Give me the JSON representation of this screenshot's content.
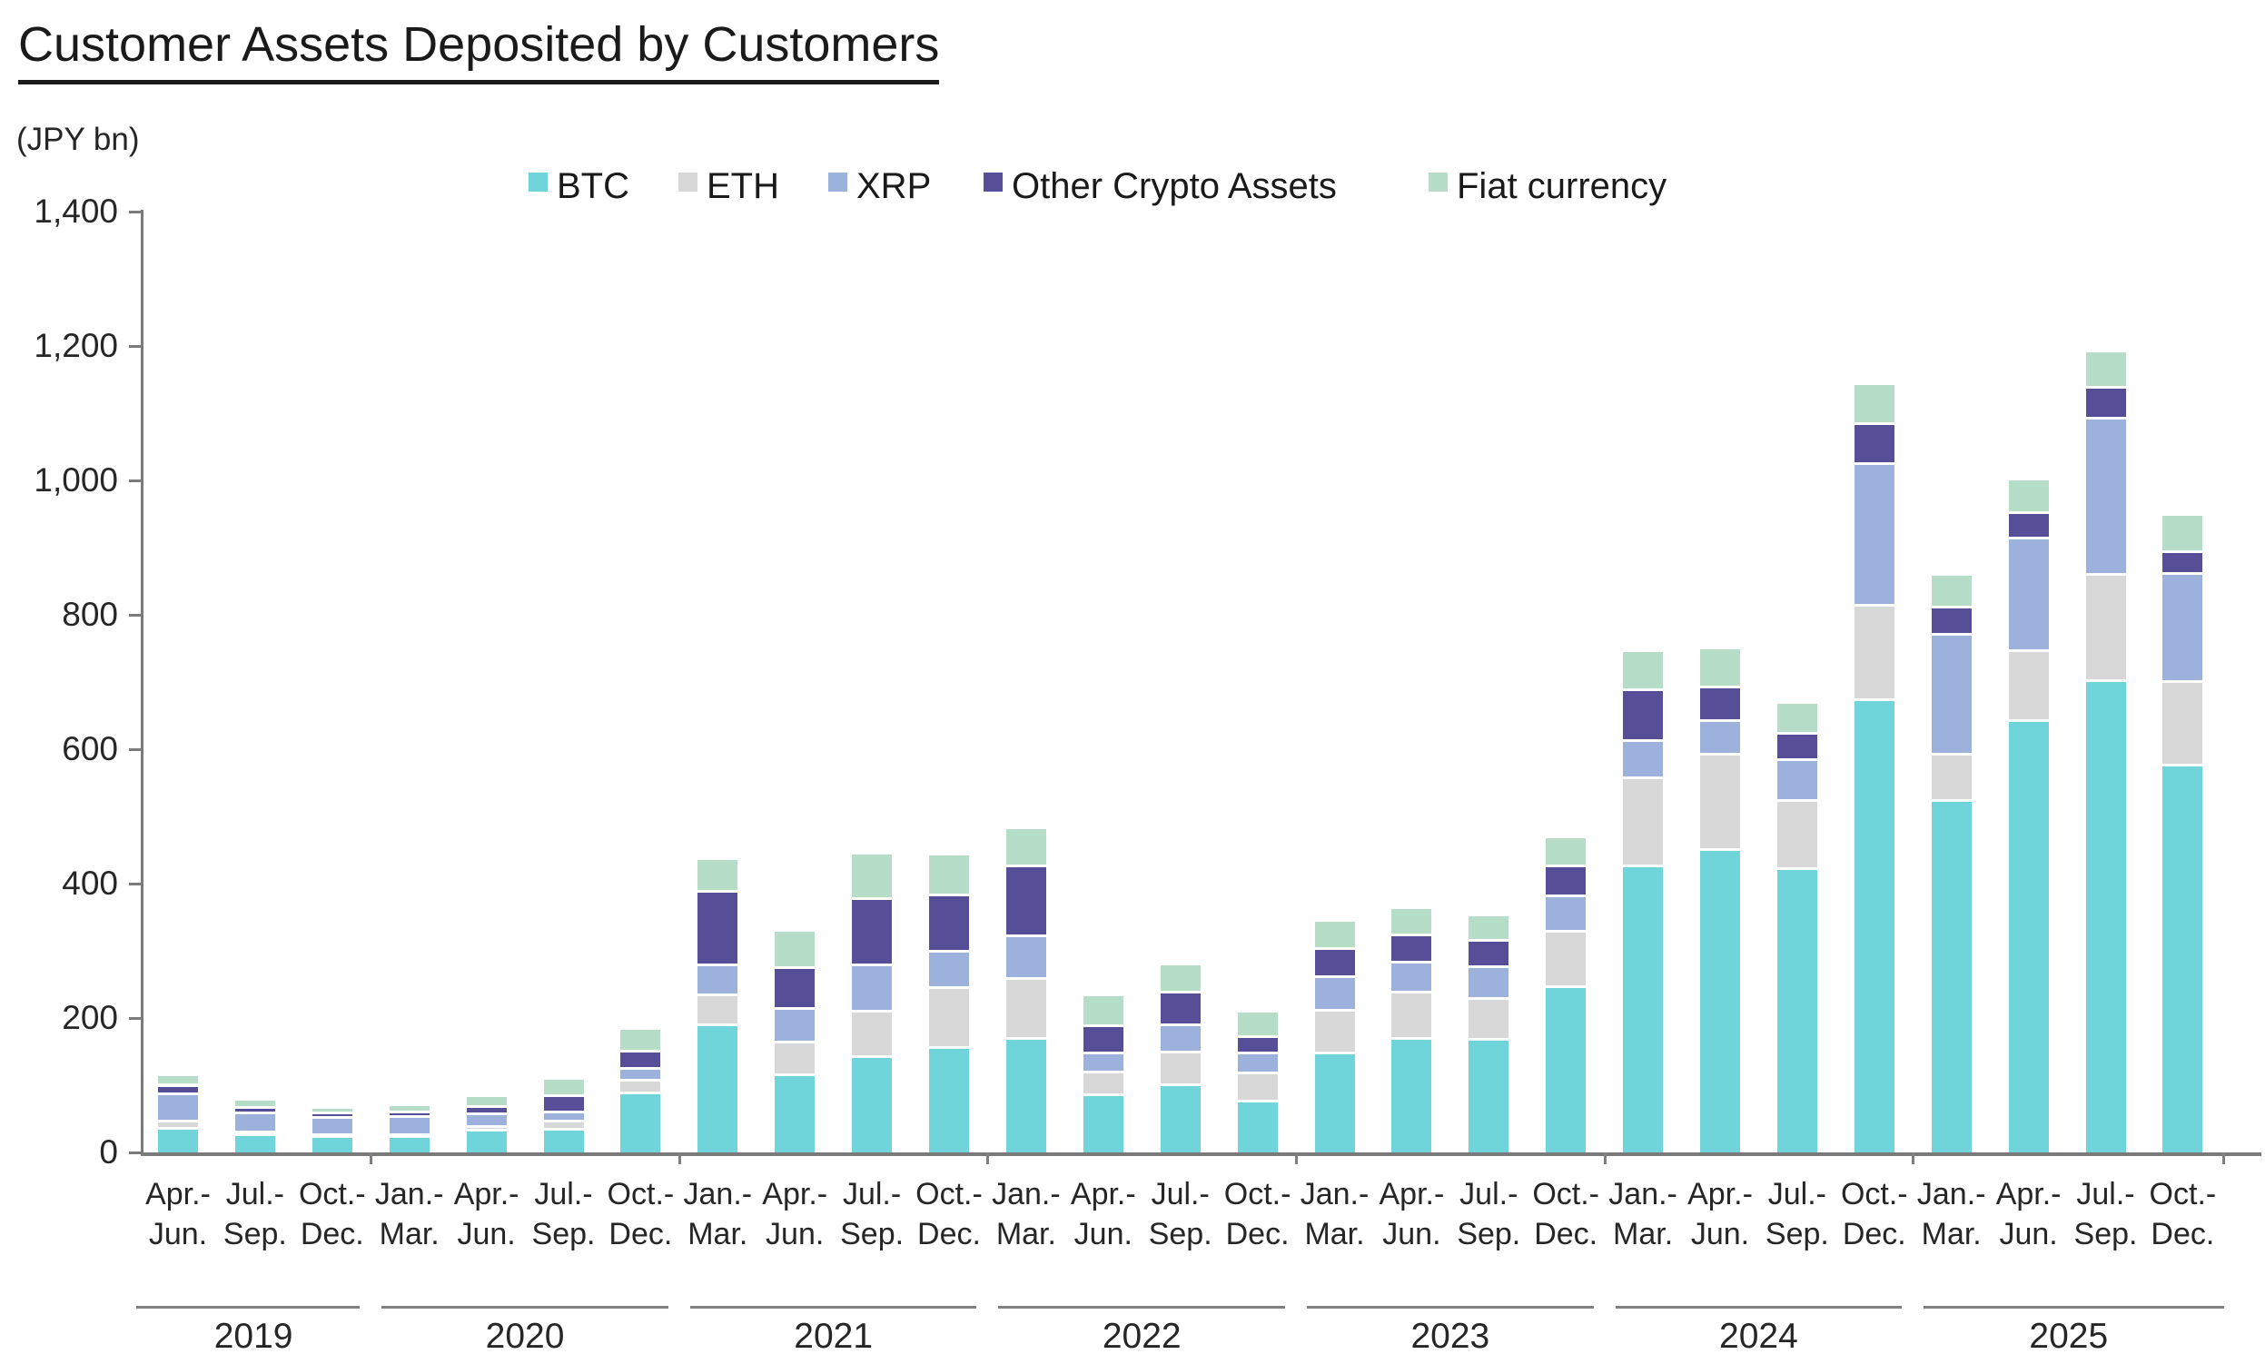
{
  "header": {
    "title": "Customer Assets Deposited by Customers",
    "unit_label": "(JPY bn)"
  },
  "chart_data": {
    "type": "bar",
    "stacked": true,
    "title": "Customer Assets Deposited by Customers",
    "ylabel": "(JPY bn)",
    "ylim": [
      0,
      1400
    ],
    "y_tick_step": 200,
    "y_tick_labels": [
      "0",
      "200",
      "400",
      "600",
      "800",
      "1,000",
      "1,200",
      "1,400"
    ],
    "grid": false,
    "legend_position": "top-center",
    "categories": [
      {
        "line1": "Apr.-",
        "line2": "Jun."
      },
      {
        "line1": "Jul.-",
        "line2": "Sep."
      },
      {
        "line1": "Oct.-",
        "line2": "Dec."
      },
      {
        "line1": "Jan.-",
        "line2": "Mar."
      },
      {
        "line1": "Apr.-",
        "line2": "Jun."
      },
      {
        "line1": "Jul.-",
        "line2": "Sep."
      },
      {
        "line1": "Oct.-",
        "line2": "Dec."
      },
      {
        "line1": "Jan.-",
        "line2": "Mar."
      },
      {
        "line1": "Apr.-",
        "line2": "Jun."
      },
      {
        "line1": "Jul.-",
        "line2": "Sep."
      },
      {
        "line1": "Oct.-",
        "line2": "Dec."
      },
      {
        "line1": "Jan.-",
        "line2": "Mar."
      },
      {
        "line1": "Apr.-",
        "line2": "Jun."
      },
      {
        "line1": "Jul.-",
        "line2": "Sep."
      },
      {
        "line1": "Oct.-",
        "line2": "Dec."
      },
      {
        "line1": "Jan.-",
        "line2": "Mar."
      },
      {
        "line1": "Apr.-",
        "line2": "Jun."
      },
      {
        "line1": "Jul.-",
        "line2": "Sep."
      },
      {
        "line1": "Oct.-",
        "line2": "Dec."
      },
      {
        "line1": "Jan.-",
        "line2": "Mar."
      },
      {
        "line1": "Apr.-",
        "line2": "Jun."
      },
      {
        "line1": "Jul.-",
        "line2": "Sep."
      },
      {
        "line1": "Oct.-",
        "line2": "Dec."
      },
      {
        "line1": "Jan.-",
        "line2": "Mar."
      },
      {
        "line1": "Apr.-",
        "line2": "Jun."
      },
      {
        "line1": "Jul.-",
        "line2": "Sep."
      },
      {
        "line1": "Oct.-",
        "line2": "Dec."
      }
    ],
    "year_groups": [
      {
        "label": "2019",
        "count": 3
      },
      {
        "label": "2020",
        "count": 4
      },
      {
        "label": "2021",
        "count": 4
      },
      {
        "label": "2022",
        "count": 4
      },
      {
        "label": "2023",
        "count": 4
      },
      {
        "label": "2024",
        "count": 4
      },
      {
        "label": "2025",
        "count": 4
      }
    ],
    "series": [
      {
        "name": "BTC",
        "color": "#70D5DB",
        "values": [
          34,
          25,
          22,
          21,
          31,
          33,
          86,
          188,
          114,
          141,
          154,
          168,
          84,
          98,
          75,
          146,
          168,
          166,
          244,
          424,
          449,
          420,
          672,
          521,
          640,
          700,
          575
        ]
      },
      {
        "name": "ETH",
        "color": "#D8D8D8",
        "values": [
          10,
          4,
          3,
          3,
          5,
          11,
          19,
          44,
          48,
          67,
          89,
          89,
          34,
          49,
          41,
          64,
          69,
          61,
          83,
          131,
          141,
          102,
          140,
          70,
          105,
          158,
          124
        ]
      },
      {
        "name": "XRP",
        "color": "#9CB1DC",
        "values": [
          41,
          28,
          25,
          28,
          20,
          14,
          18,
          45,
          50,
          69,
          54,
          63,
          28,
          41,
          30,
          49,
          44,
          48,
          53,
          56,
          51,
          61,
          211,
          178,
          167,
          232,
          161
        ]
      },
      {
        "name": "Other Crypto Assets",
        "color": "#564F97",
        "values": [
          13,
          8,
          7,
          6,
          10,
          24,
          26,
          110,
          61,
          99,
          84,
          104,
          41,
          48,
          24,
          42,
          40,
          38,
          45,
          76,
          50,
          38,
          60,
          41,
          38,
          47,
          32
        ]
      },
      {
        "name": "Fiat currency",
        "color": "#B5DDC8",
        "values": [
          15,
          12,
          8,
          11,
          17,
          26,
          34,
          48,
          56,
          67,
          61,
          57,
          45,
          43,
          38,
          42,
          41,
          38,
          42,
          57,
          58,
          47,
          59,
          48,
          50,
          54,
          55
        ]
      }
    ]
  },
  "colors": {
    "axis": "#7a7a7a",
    "separator": "#808080",
    "text": "#262626",
    "title_text": "#1a1a1a"
  }
}
